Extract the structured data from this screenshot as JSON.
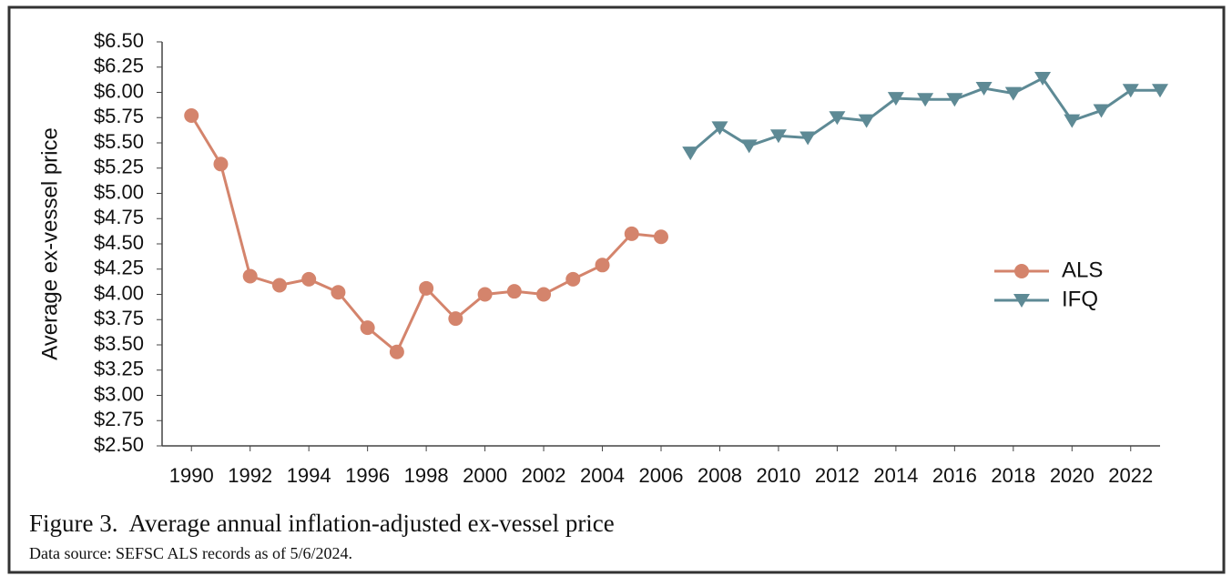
{
  "chart_data": {
    "type": "line",
    "y_label": "Average ex-vessel price",
    "caption": "Figure 3.  Average annual inflation-adjusted ex-vessel price",
    "source": "Data source: SEFSC ALS records as of 5/6/2024.",
    "x": [
      1990,
      1991,
      1992,
      1993,
      1994,
      1995,
      1996,
      1997,
      1998,
      1999,
      2000,
      2001,
      2002,
      2003,
      2004,
      2005,
      2006,
      2007,
      2008,
      2009,
      2010,
      2011,
      2012,
      2013,
      2014,
      2015,
      2016,
      2017,
      2018,
      2019,
      2020,
      2021,
      2022,
      2023
    ],
    "series": [
      {
        "name": "ALS",
        "color": "#d4846c",
        "marker": "circle",
        "values": [
          5.77,
          5.29,
          4.18,
          4.09,
          4.15,
          4.02,
          3.67,
          3.43,
          4.06,
          3.76,
          4.0,
          4.03,
          4.0,
          4.15,
          4.29,
          4.6,
          4.57,
          null,
          null,
          null,
          null,
          null,
          null,
          null,
          null,
          null,
          null,
          null,
          null,
          null,
          null,
          null,
          null,
          null
        ]
      },
      {
        "name": "IFQ",
        "color": "#5e8a95",
        "marker": "triangle-down",
        "values": [
          null,
          null,
          null,
          null,
          null,
          null,
          null,
          null,
          null,
          null,
          null,
          null,
          null,
          null,
          null,
          null,
          null,
          5.4,
          5.65,
          5.47,
          5.57,
          5.55,
          5.75,
          5.72,
          5.94,
          5.93,
          5.93,
          6.04,
          5.99,
          6.14,
          5.72,
          5.82,
          6.02,
          6.02
        ]
      }
    ],
    "xlim": [
      1989,
      2023
    ],
    "xticks": [
      1990,
      1992,
      1994,
      1996,
      1998,
      2000,
      2002,
      2004,
      2006,
      2008,
      2010,
      2012,
      2014,
      2016,
      2018,
      2020,
      2022
    ],
    "ylim": [
      2.5,
      6.5
    ],
    "yticks": [
      {
        "value": 2.5,
        "label": "$2.50"
      },
      {
        "value": 2.75,
        "label": "$2.75"
      },
      {
        "value": 3,
        "label": "$3.00"
      },
      {
        "value": 3.25,
        "label": "$3.25"
      },
      {
        "value": 3.5,
        "label": "$3.50"
      },
      {
        "value": 3.75,
        "label": "$3.75"
      },
      {
        "value": 4,
        "label": "$4.00"
      },
      {
        "value": 4.25,
        "label": "$4.25"
      },
      {
        "value": 4.5,
        "label": "$4.50"
      },
      {
        "value": 4.75,
        "label": "$4.75"
      },
      {
        "value": 5,
        "label": "$5.00"
      },
      {
        "value": 5.25,
        "label": "$5.25"
      },
      {
        "value": 5.5,
        "label": "$5.50"
      },
      {
        "value": 5.75,
        "label": "$5.75"
      },
      {
        "value": 6,
        "label": "$6.00"
      },
      {
        "value": 6.25,
        "label": "$6.25"
      },
      {
        "value": 6.5,
        "label": "$6.50"
      }
    ],
    "grid": false,
    "legend_position": "right"
  }
}
